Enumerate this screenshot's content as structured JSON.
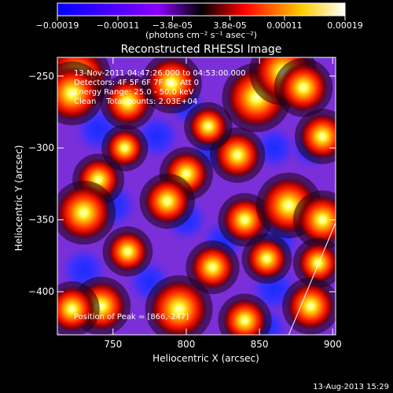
{
  "chart_data": {
    "type": "heatmap",
    "title": "Reconstructed RHESSI Image",
    "xlabel": "Heliocentric X (arcsec)",
    "ylabel": "Heliocentric Y (arcsec)",
    "xlim": [
      712,
      902
    ],
    "ylim": [
      -430,
      -237
    ],
    "x_ticks": [
      750,
      800,
      850,
      900
    ],
    "y_ticks": [
      -250,
      -300,
      -350,
      -400
    ],
    "colorbar": {
      "label": "(photons cm⁻² s⁻¹ asec⁻²)",
      "range": [
        -0.00019,
        0.00019
      ],
      "tick_labels": [
        "-0.00019",
        "-0.00011",
        "-3.8e-05",
        "3.8e-05",
        "0.00011",
        "0.00019"
      ],
      "colors": [
        "#0000ff",
        "#7b00ff",
        "#8c00ff",
        "#000000",
        "#ff0000",
        "#ff9900",
        "#ffff00",
        "#ffffff"
      ]
    },
    "annotations": [
      "13-Nov-2011 04:47:26.000 to 04:53:00.000",
      "Detectors: 4F 5F 6F 7F 8F, Att 0",
      "Energy Range: 25.0 - 50.0 keV",
      "Clean    Total counts: 2.03E+04"
    ],
    "peak_label": "Position of Peak = [866,-247]",
    "footer_date": "13-Aug-2013 15:29",
    "bright_spots": [
      {
        "x": 725,
        "y": -250,
        "v": 1.0
      },
      {
        "x": 722,
        "y": -262,
        "v": 0.85
      },
      {
        "x": 760,
        "y": -268,
        "v": 0.6
      },
      {
        "x": 790,
        "y": -255,
        "v": 0.75
      },
      {
        "x": 848,
        "y": -265,
        "v": 1.0
      },
      {
        "x": 866,
        "y": -247,
        "v": 0.95
      },
      {
        "x": 880,
        "y": -258,
        "v": 0.7
      },
      {
        "x": 893,
        "y": -292,
        "v": 0.6
      },
      {
        "x": 835,
        "y": -305,
        "v": 0.6
      },
      {
        "x": 800,
        "y": -318,
        "v": 0.55
      },
      {
        "x": 740,
        "y": -322,
        "v": 0.5
      },
      {
        "x": 730,
        "y": -345,
        "v": 0.85
      },
      {
        "x": 787,
        "y": -337,
        "v": 0.6
      },
      {
        "x": 840,
        "y": -350,
        "v": 0.55
      },
      {
        "x": 870,
        "y": -340,
        "v": 0.9
      },
      {
        "x": 893,
        "y": -350,
        "v": 0.7
      },
      {
        "x": 760,
        "y": -372,
        "v": 0.45
      },
      {
        "x": 818,
        "y": -383,
        "v": 0.55
      },
      {
        "x": 855,
        "y": -377,
        "v": 0.45
      },
      {
        "x": 890,
        "y": -380,
        "v": 0.45
      },
      {
        "x": 742,
        "y": -410,
        "v": 0.7
      },
      {
        "x": 795,
        "y": -412,
        "v": 0.95
      },
      {
        "x": 840,
        "y": -420,
        "v": 0.55
      },
      {
        "x": 885,
        "y": -410,
        "v": 0.65
      },
      {
        "x": 722,
        "y": -412,
        "v": 0.6
      },
      {
        "x": 758,
        "y": -300,
        "v": 0.35
      },
      {
        "x": 815,
        "y": -285,
        "v": 0.4
      }
    ],
    "dark_spots": [
      {
        "x": 740,
        "y": -287,
        "v": 0.9
      },
      {
        "x": 780,
        "y": -292,
        "v": 0.8
      },
      {
        "x": 818,
        "y": -302,
        "v": 0.7
      },
      {
        "x": 860,
        "y": -300,
        "v": 0.7
      },
      {
        "x": 885,
        "y": -300,
        "v": 0.6
      },
      {
        "x": 750,
        "y": -340,
        "v": 0.9
      },
      {
        "x": 800,
        "y": -350,
        "v": 0.7
      },
      {
        "x": 825,
        "y": -365,
        "v": 0.7
      },
      {
        "x": 862,
        "y": -365,
        "v": 0.8
      },
      {
        "x": 730,
        "y": -385,
        "v": 0.8
      },
      {
        "x": 775,
        "y": -393,
        "v": 0.7
      },
      {
        "x": 860,
        "y": -398,
        "v": 0.9
      },
      {
        "x": 855,
        "y": -425,
        "v": 0.6
      },
      {
        "x": 800,
        "y": -270,
        "v": 0.5
      }
    ],
    "limb_line": [
      [
        870,
        -430
      ],
      [
        902,
        -352
      ]
    ]
  }
}
